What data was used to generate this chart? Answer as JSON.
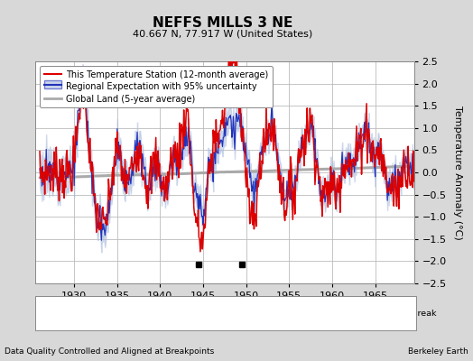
{
  "title": "NEFFS MILLS 3 NE",
  "subtitle": "40.667 N, 77.917 W (United States)",
  "ylabel": "Temperature Anomaly (°C)",
  "xlabel_left": "Data Quality Controlled and Aligned at Breakpoints",
  "xlabel_right": "Berkeley Earth",
  "xlim": [
    1925.5,
    1969.5
  ],
  "ylim": [
    -2.5,
    2.5
  ],
  "yticks": [
    -2.5,
    -2,
    -1.5,
    -1,
    -0.5,
    0,
    0.5,
    1,
    1.5,
    2,
    2.5
  ],
  "xticks": [
    1930,
    1935,
    1940,
    1945,
    1950,
    1955,
    1960,
    1965
  ],
  "background_color": "#d8d8d8",
  "plot_bg_color": "#ffffff",
  "grid_color": "#bbbbbb",
  "empirical_breaks": [
    1944.5,
    1949.5
  ],
  "station_color": "#dd0000",
  "regional_color": "#2233bb",
  "regional_fill": "#aabbdd",
  "global_color": "#aaaaaa"
}
